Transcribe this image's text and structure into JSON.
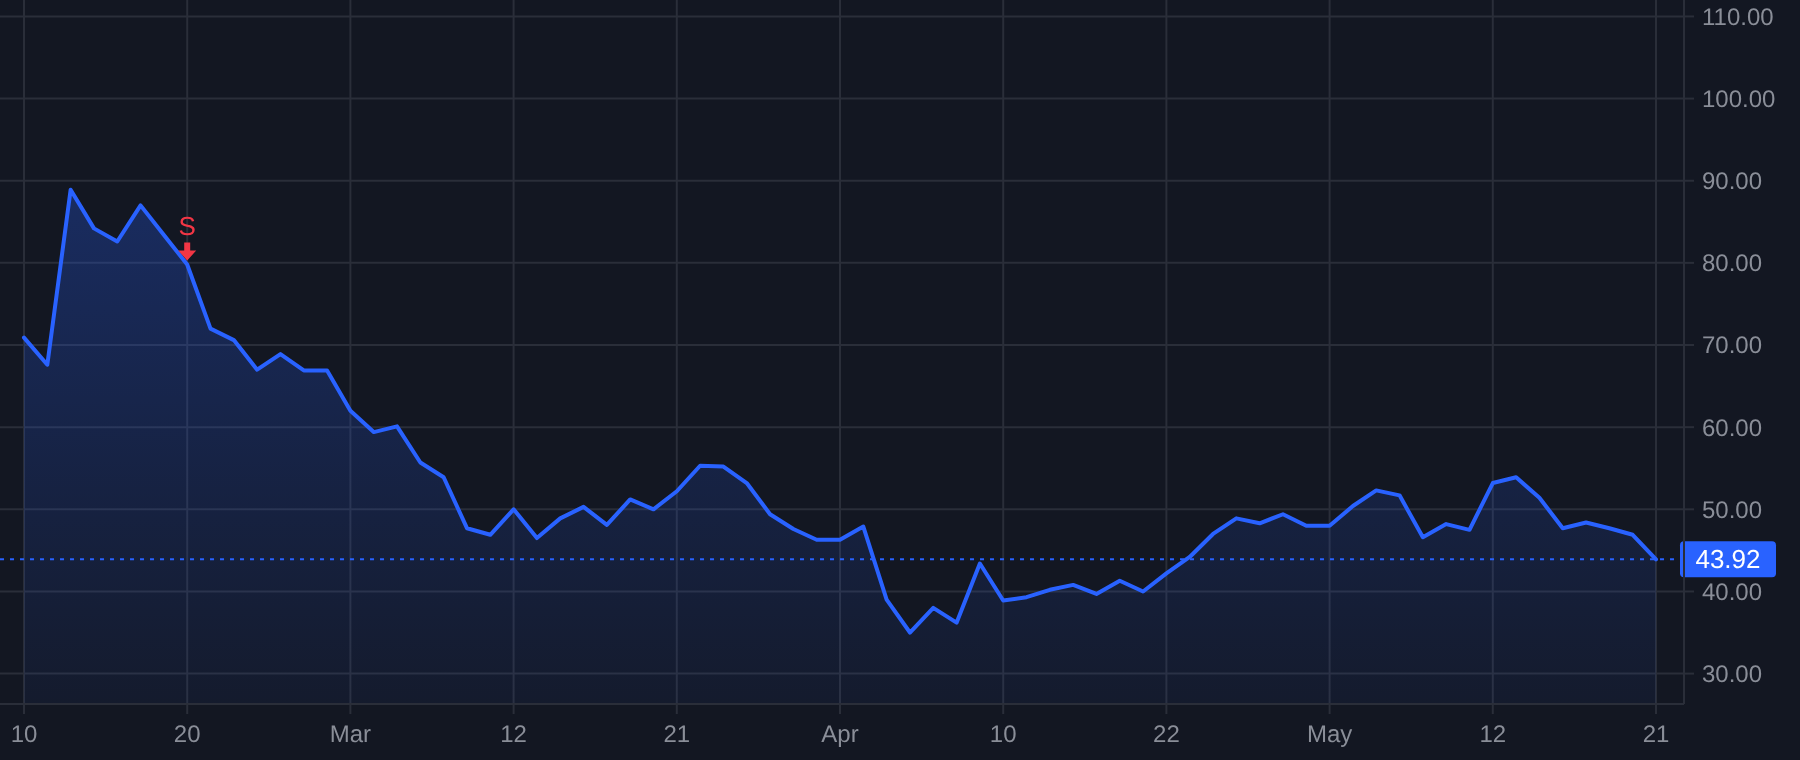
{
  "chart_data": {
    "type": "area",
    "categories": [
      "10",
      null,
      null,
      null,
      null,
      null,
      null,
      "20",
      null,
      null,
      null,
      null,
      null,
      null,
      "Mar",
      null,
      null,
      null,
      null,
      null,
      null,
      "12",
      null,
      null,
      null,
      null,
      null,
      null,
      "21",
      null,
      null,
      null,
      null,
      null,
      null,
      "Apr",
      null,
      null,
      null,
      null,
      null,
      null,
      "10",
      null,
      null,
      null,
      null,
      null,
      null,
      "22",
      null,
      null,
      null,
      null,
      null,
      null,
      "May",
      null,
      null,
      null,
      null,
      null,
      null,
      "12",
      null,
      null,
      null,
      null,
      null,
      null,
      "21"
    ],
    "series": [
      {
        "color": "#2962ff",
        "values": [
          70.9,
          67.6,
          88.9,
          84.2,
          82.6,
          87.0,
          83.4,
          79.8,
          72.0,
          70.6,
          67.0,
          68.9,
          66.9,
          66.9,
          62.0,
          59.4,
          60.1,
          55.7,
          53.9,
          47.7,
          46.9,
          50.0,
          46.5,
          48.9,
          50.3,
          48.1,
          51.2,
          50.0,
          52.2,
          55.3,
          55.2,
          53.2,
          49.4,
          47.6,
          46.3,
          46.3,
          47.9,
          39.0,
          35.0,
          38.0,
          36.2,
          43.4,
          38.9,
          39.3,
          40.2,
          40.8,
          39.7,
          41.3,
          40.0,
          42.2,
          44.2,
          47.0,
          48.9,
          48.3,
          49.4,
          48.0,
          48.0,
          50.4,
          52.3,
          51.7,
          46.6,
          48.2,
          47.5,
          53.2,
          53.9,
          51.4,
          47.7,
          48.4,
          47.7,
          46.9,
          43.9
        ]
      }
    ],
    "ylim": [
      26.3,
      112
    ],
    "yticks": [
      {
        "value": 30,
        "label": "30.00"
      },
      {
        "value": 40,
        "label": "40.00"
      },
      {
        "value": 50,
        "label": "50.00"
      },
      {
        "value": 60,
        "label": "60.00"
      },
      {
        "value": 70,
        "label": "70.00"
      },
      {
        "value": 80,
        "label": "80.00"
      },
      {
        "value": 90,
        "label": "90.00"
      },
      {
        "value": 100,
        "label": "100.00"
      },
      {
        "value": 110,
        "label": "110.00"
      }
    ],
    "grid": true,
    "ref_lines": [
      {
        "axis": "y",
        "value": 43.92,
        "label": "43.92",
        "color": "#2962ff",
        "line_style": "dotted"
      }
    ],
    "annotations": [
      {
        "text": "S",
        "x": "20",
        "y": 79.8
      }
    ]
  }
}
